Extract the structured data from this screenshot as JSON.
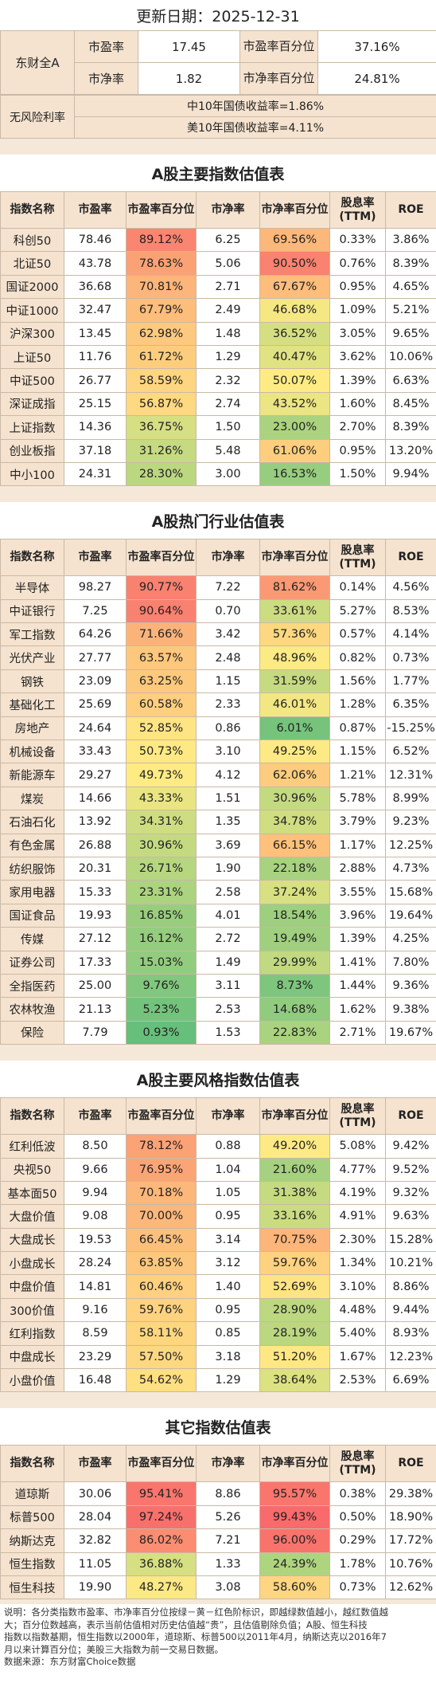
{
  "update_date": "更新日期：2025-12-31",
  "overview": {
    "index_name": "东财全A",
    "pe_label": "市盈率",
    "pe_value": "17.45",
    "pe_pct_label": "市盈率百分位",
    "pe_pct_value": "37.16%",
    "pb_label": "市净率",
    "pb_value": "1.82",
    "pb_pct_label": "市净率百分位",
    "pb_pct_value": "24.81%",
    "riskfree_label": "无风险利率",
    "cn_bond": "中10年国债收益率=1.86%",
    "us_bond": "美10年国债收益率=4.11%"
  },
  "headers": [
    "指数名称",
    "市盈率",
    "市盈率百分位",
    "市净率",
    "市净率百分位",
    "股息率(TTM)",
    "ROE"
  ],
  "sections": [
    {
      "title": "A股主要指数估值表",
      "rows": [
        [
          "科创50",
          "78.46",
          "89.12%",
          "6.25",
          "69.56%",
          "0.33%",
          "3.86%"
        ],
        [
          "北证50",
          "43.78",
          "78.63%",
          "5.06",
          "90.50%",
          "0.76%",
          "8.39%"
        ],
        [
          "国证2000",
          "36.68",
          "70.81%",
          "2.71",
          "67.67%",
          "0.95%",
          "4.65%"
        ],
        [
          "中证1000",
          "32.47",
          "67.79%",
          "2.49",
          "46.68%",
          "1.09%",
          "5.21%"
        ],
        [
          "沪深300",
          "13.45",
          "62.98%",
          "1.48",
          "36.52%",
          "3.05%",
          "9.65%"
        ],
        [
          "上证50",
          "11.76",
          "61.72%",
          "1.29",
          "40.47%",
          "3.62%",
          "10.06%"
        ],
        [
          "中证500",
          "26.77",
          "58.59%",
          "2.32",
          "50.07%",
          "1.39%",
          "6.63%"
        ],
        [
          "深证成指",
          "25.15",
          "56.87%",
          "2.74",
          "43.52%",
          "1.60%",
          "8.45%"
        ],
        [
          "上证指数",
          "14.36",
          "36.75%",
          "1.50",
          "23.00%",
          "2.70%",
          "8.39%"
        ],
        [
          "创业板指",
          "37.18",
          "31.26%",
          "5.48",
          "61.06%",
          "0.95%",
          "13.20%"
        ],
        [
          "中小100",
          "24.31",
          "28.30%",
          "3.00",
          "16.53%",
          "1.50%",
          "9.94%"
        ]
      ]
    },
    {
      "title": "A股热门行业估值表",
      "rows": [
        [
          "半导体",
          "98.27",
          "90.77%",
          "7.22",
          "81.62%",
          "0.14%",
          "4.56%"
        ],
        [
          "中证银行",
          "7.25",
          "90.64%",
          "0.70",
          "33.61%",
          "5.27%",
          "8.53%"
        ],
        [
          "军工指数",
          "64.26",
          "71.66%",
          "3.42",
          "57.36%",
          "0.57%",
          "4.14%"
        ],
        [
          "光伏产业",
          "27.77",
          "63.57%",
          "2.48",
          "48.96%",
          "0.82%",
          "0.73%"
        ],
        [
          "钢铁",
          "23.09",
          "63.25%",
          "1.15",
          "31.59%",
          "1.56%",
          "1.77%"
        ],
        [
          "基础化工",
          "25.69",
          "60.58%",
          "2.33",
          "46.01%",
          "1.28%",
          "6.35%"
        ],
        [
          "房地产",
          "24.64",
          "52.85%",
          "0.86",
          "6.01%",
          "0.87%",
          "-15.25%"
        ],
        [
          "机械设备",
          "33.43",
          "50.73%",
          "3.10",
          "49.25%",
          "1.15%",
          "6.52%"
        ],
        [
          "新能源车",
          "29.27",
          "49.73%",
          "4.12",
          "62.06%",
          "1.21%",
          "12.31%"
        ],
        [
          "煤炭",
          "14.66",
          "43.33%",
          "1.51",
          "30.96%",
          "5.78%",
          "8.99%"
        ],
        [
          "石油石化",
          "13.92",
          "34.31%",
          "1.35",
          "34.78%",
          "3.79%",
          "9.23%"
        ],
        [
          "有色金属",
          "26.88",
          "30.96%",
          "3.69",
          "66.15%",
          "1.17%",
          "12.25%"
        ],
        [
          "纺织服饰",
          "20.31",
          "26.71%",
          "1.90",
          "22.18%",
          "2.88%",
          "4.73%"
        ],
        [
          "家用电器",
          "15.33",
          "23.31%",
          "2.58",
          "37.24%",
          "3.55%",
          "15.68%"
        ],
        [
          "国证食品",
          "19.93",
          "16.85%",
          "4.01",
          "18.54%",
          "3.96%",
          "19.64%"
        ],
        [
          "传媒",
          "27.12",
          "16.12%",
          "2.72",
          "19.49%",
          "1.39%",
          "4.25%"
        ],
        [
          "证券公司",
          "17.33",
          "15.03%",
          "1.49",
          "29.99%",
          "1.41%",
          "7.80%"
        ],
        [
          "全指医药",
          "25.00",
          "9.76%",
          "3.11",
          "8.73%",
          "1.44%",
          "9.36%"
        ],
        [
          "农林牧渔",
          "21.13",
          "5.23%",
          "2.53",
          "14.68%",
          "1.62%",
          "9.38%"
        ],
        [
          "保险",
          "7.79",
          "0.93%",
          "1.53",
          "22.83%",
          "2.71%",
          "19.67%"
        ]
      ]
    },
    {
      "title": "A股主要风格指数估值表",
      "rows": [
        [
          "红利低波",
          "8.50",
          "78.12%",
          "0.88",
          "49.20%",
          "5.08%",
          "9.42%"
        ],
        [
          "央视50",
          "9.66",
          "76.95%",
          "1.04",
          "21.60%",
          "4.77%",
          "9.52%"
        ],
        [
          "基本面50",
          "9.94",
          "70.18%",
          "1.05",
          "31.38%",
          "4.19%",
          "9.32%"
        ],
        [
          "大盘价值",
          "9.08",
          "70.00%",
          "0.95",
          "33.16%",
          "4.91%",
          "9.63%"
        ],
        [
          "大盘成长",
          "19.53",
          "66.45%",
          "3.14",
          "70.75%",
          "2.30%",
          "15.28%"
        ],
        [
          "小盘成长",
          "28.24",
          "63.85%",
          "3.12",
          "59.76%",
          "1.34%",
          "10.21%"
        ],
        [
          "中盘价值",
          "14.81",
          "60.46%",
          "1.40",
          "52.69%",
          "3.10%",
          "8.86%"
        ],
        [
          "300价值",
          "9.16",
          "59.76%",
          "0.95",
          "28.90%",
          "4.48%",
          "9.44%"
        ],
        [
          "红利指数",
          "8.59",
          "58.11%",
          "0.85",
          "28.19%",
          "5.40%",
          "8.93%"
        ],
        [
          "中盘成长",
          "23.29",
          "57.50%",
          "3.18",
          "51.20%",
          "1.67%",
          "12.23%"
        ],
        [
          "小盘价值",
          "16.48",
          "54.62%",
          "1.29",
          "38.64%",
          "2.53%",
          "6.69%"
        ]
      ]
    },
    {
      "title": "其它指数估值表",
      "rows": [
        [
          "道琼斯",
          "30.06",
          "95.41%",
          "8.86",
          "95.57%",
          "0.38%",
          "29.38%"
        ],
        [
          "标普500",
          "28.04",
          "97.24%",
          "5.26",
          "99.43%",
          "0.50%",
          "18.90%"
        ],
        [
          "纳斯达克",
          "32.82",
          "86.02%",
          "7.21",
          "96.00%",
          "0.29%",
          "17.72%"
        ],
        [
          "恒生指数",
          "11.05",
          "36.88%",
          "1.33",
          "24.39%",
          "1.78%",
          "10.76%"
        ],
        [
          "恒生科技",
          "19.90",
          "48.27%",
          "3.08",
          "58.60%",
          "0.73%",
          "12.62%"
        ]
      ]
    }
  ],
  "notes": [
    "说明：各分类指数市盈率、市净率百分位按绿－黄－红色阶标识，即越绿数值越小，越红数值越",
    "大；百分位数越高，表示当前估值相对历史估值越“贵”，且估值剔除负值；A股、恒生科技",
    "指数以指数基期，恒生指数以2000年，道琼斯、标普500以2011年4月，纳斯达克以2016年7",
    "月以来计算百分位；美股三大指数为前一交易日数据。",
    "数据来源：东方财富Choice数据"
  ]
}
